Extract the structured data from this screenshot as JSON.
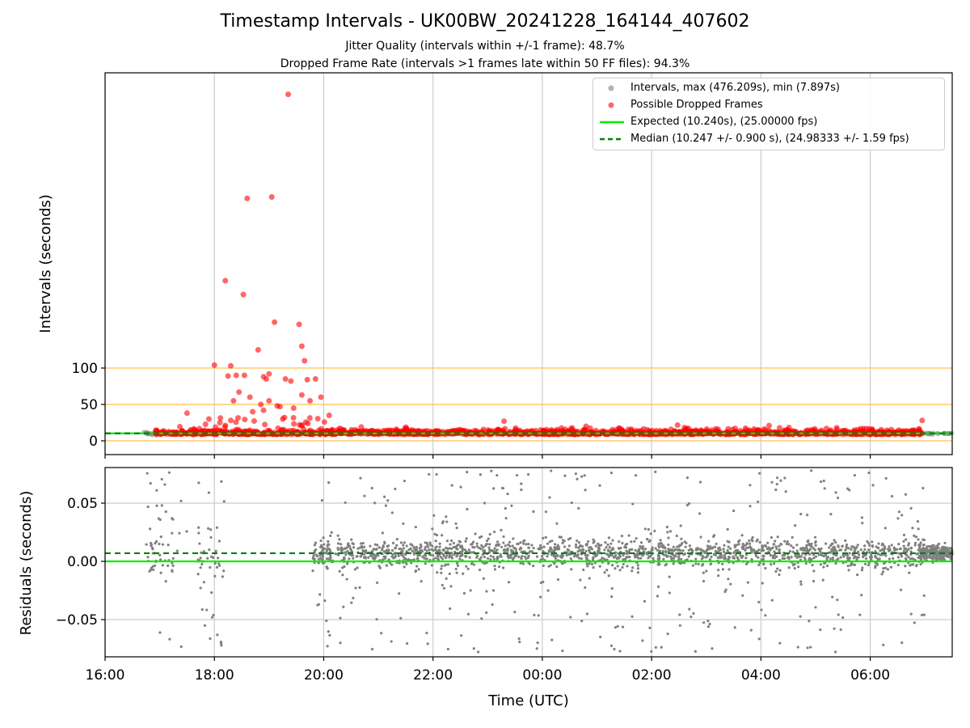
{
  "figure": {
    "title": "Timestamp Intervals - UK00BW_20241228_164144_407602",
    "subtitle_1": "Jitter Quality (intervals within +/-1 frame): 48.7%",
    "subtitle_2": "Dropped Frame Rate (intervals >1 frames late within 50 FF files): 94.3%"
  },
  "legend": {
    "intervals": "Intervals, max (476.209s), min (7.897s)",
    "dropped": "Possible Dropped Frames",
    "expected": "Expected (10.240s), (25.00000 fps)",
    "median": "Median (10.247 +/- 0.900 s), (24.98333 +/- 1.59 fps)"
  },
  "colors": {
    "intervals": "#808080",
    "dropped": "#ff0000",
    "expected": "#00ee00",
    "median": "#008000",
    "threshold": "#ffc04d",
    "grid": "#cccccc"
  },
  "chart_data": [
    {
      "type": "scatter",
      "name": "intervals",
      "ylabel": "Intervals (seconds)",
      "xlabel": "",
      "grid": "vertical",
      "yticks": [
        0,
        50,
        100
      ],
      "ylim": [
        -15,
        500
      ],
      "xlim": [
        "16:00",
        "07:30"
      ],
      "horizontal_lines": [
        0,
        50,
        100
      ],
      "expected": 10.24,
      "median": 10.247,
      "max": 476.209,
      "min": 7.897,
      "dropped_points": [
        [
          18.2,
          220
        ],
        [
          18.53,
          201
        ],
        [
          18.6,
          333
        ],
        [
          18.3,
          103
        ],
        [
          18.0,
          104
        ],
        [
          18.8,
          125
        ],
        [
          18.9,
          88
        ],
        [
          19.05,
          335
        ],
        [
          19.1,
          163
        ],
        [
          19.55,
          160
        ],
        [
          19.6,
          130
        ],
        [
          19.65,
          110
        ],
        [
          19.35,
          476
        ],
        [
          19.0,
          92
        ],
        [
          18.95,
          85
        ],
        [
          19.3,
          85
        ],
        [
          19.4,
          82
        ],
        [
          19.7,
          84
        ],
        [
          19.85,
          85
        ],
        [
          19.95,
          60
        ],
        [
          18.25,
          89
        ],
        [
          18.4,
          90
        ],
        [
          18.55,
          90
        ],
        [
          18.65,
          60
        ],
        [
          18.7,
          40
        ],
        [
          18.45,
          67
        ],
        [
          18.35,
          55
        ],
        [
          19.2,
          47
        ],
        [
          19.45,
          45
        ],
        [
          19.6,
          63
        ],
        [
          19.75,
          55
        ],
        [
          20.1,
          35
        ],
        [
          18.85,
          50
        ],
        [
          19.0,
          55
        ],
        [
          17.5,
          38
        ],
        [
          17.9,
          30
        ],
        [
          18.1,
          25
        ],
        [
          18.3,
          28
        ],
        [
          18.9,
          42
        ],
        [
          19.15,
          48
        ],
        [
          19.25,
          30
        ],
        [
          23.3,
          27
        ],
        [
          4.15,
          21
        ],
        [
          6.95,
          28
        ],
        [
          0.8,
          20
        ],
        [
          2.6,
          18
        ],
        [
          5.2,
          17
        ]
      ]
    },
    {
      "type": "scatter",
      "name": "residuals",
      "ylabel": "Residuals (seconds)",
      "xlabel": "Time (UTC)",
      "grid": "both",
      "yticks": [
        -0.05,
        0.0,
        0.05
      ],
      "ytick_labels": [
        "−0.05",
        "0.00",
        "0.05"
      ],
      "ylim": [
        -0.08,
        0.08
      ],
      "xlim": [
        "16:00",
        "07:30"
      ],
      "xticks": [
        "16:00",
        "18:00",
        "20:00",
        "22:00",
        "00:00",
        "02:00",
        "04:00",
        "06:00"
      ],
      "expected": 0.0,
      "median": 0.007
    }
  ]
}
